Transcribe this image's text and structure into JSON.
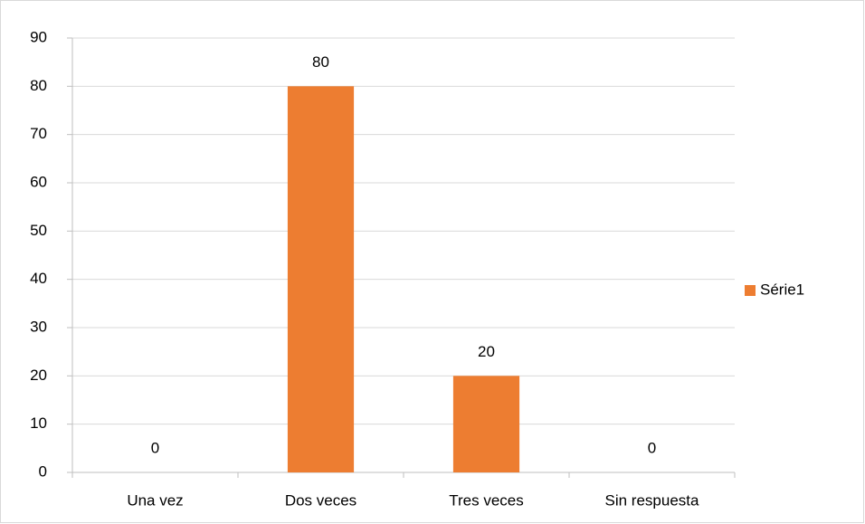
{
  "chart_data": {
    "type": "bar",
    "categories": [
      "Una vez",
      "Dos veces",
      "Tres veces",
      "Sin respuesta"
    ],
    "series": [
      {
        "name": "Série1",
        "color": "#ed7d31",
        "values": [
          0,
          80,
          20,
          0
        ]
      }
    ],
    "ylim": [
      0,
      90
    ],
    "yticks": [
      0,
      10,
      20,
      30,
      40,
      50,
      60,
      70,
      80,
      90
    ],
    "grid": true,
    "legend": "right"
  }
}
